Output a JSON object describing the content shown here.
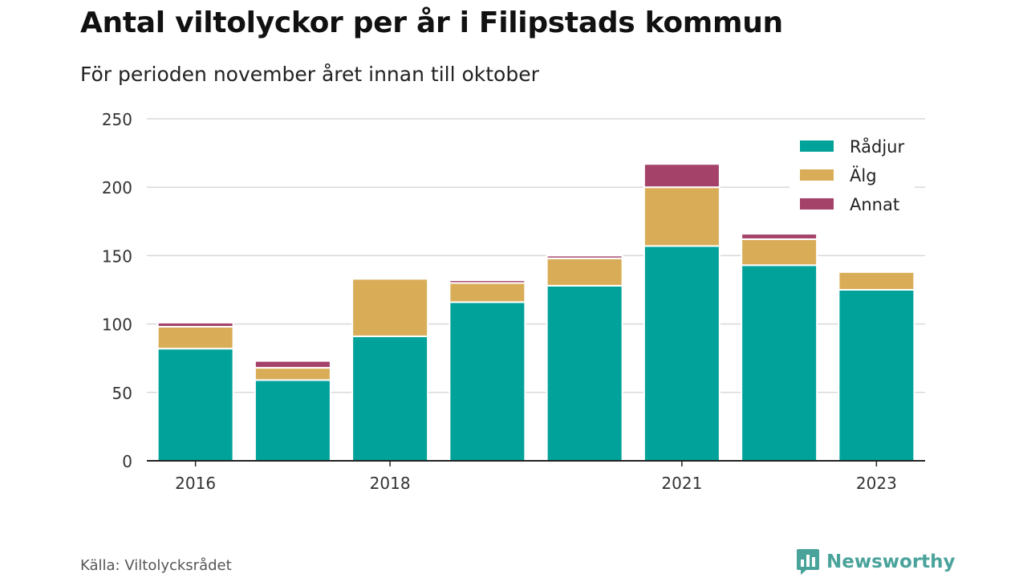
{
  "header": {
    "title": "Antal viltolyckor per år i Filipstads kommun",
    "subtitle": "För perioden november året innan till oktober"
  },
  "footer": {
    "source": "Källa: Viltolycksrådet",
    "brand": "Newsworthy",
    "brand_icon": "bar-chart-speech-bubble-icon"
  },
  "colors": {
    "radjur": "#00a29a",
    "alg": "#d9ad58",
    "annat": "#a4426a",
    "grid": "#d9d9d9",
    "axis": "#222222",
    "brand": "#4aa39b"
  },
  "chart_data": {
    "type": "bar",
    "stacked": true,
    "categories": [
      "2016",
      "2017",
      "2018",
      "2019",
      "2020",
      "2021",
      "2022",
      "2023"
    ],
    "x_tick_labels": [
      "2016",
      "2018",
      "2021",
      "2023"
    ],
    "series": [
      {
        "name": "Rådjur",
        "color": "#00a29a",
        "values": [
          82,
          59,
          91,
          116,
          128,
          157,
          143,
          125
        ]
      },
      {
        "name": "Älg",
        "color": "#d9ad58",
        "values": [
          16,
          9,
          42,
          14,
          20,
          43,
          19,
          13
        ]
      },
      {
        "name": "Annat",
        "color": "#a4426a",
        "values": [
          3,
          5,
          0,
          2,
          2,
          17,
          4,
          0
        ]
      }
    ],
    "ylim": [
      0,
      250
    ],
    "yticks": [
      0,
      50,
      100,
      150,
      200,
      250
    ],
    "xlabel": "",
    "ylabel": "",
    "grid": true,
    "legend_position": "top-right"
  }
}
